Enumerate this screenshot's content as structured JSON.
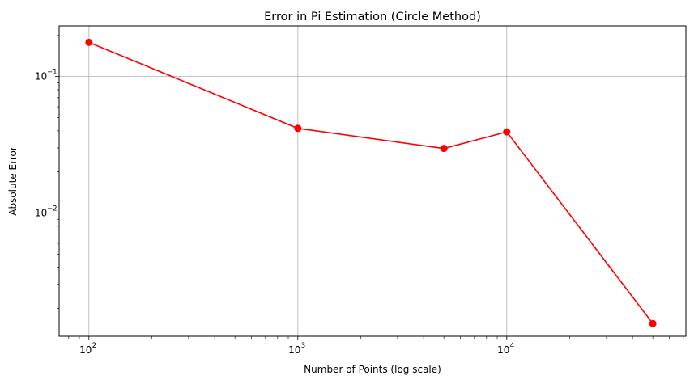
{
  "chart_data": {
    "type": "line",
    "title": "Error in Pi Estimation (Circle Method)",
    "xlabel": "Number of Points (log scale)",
    "ylabel": "Absolute Error",
    "xscale": "log",
    "yscale": "log",
    "xlim": [
      72,
      72000
    ],
    "ylim": [
      0.00125,
      0.235
    ],
    "grid": true,
    "x_ticks": [
      {
        "value": 100,
        "base": "10",
        "exp": "2"
      },
      {
        "value": 1000,
        "base": "10",
        "exp": "3"
      },
      {
        "value": 10000,
        "base": "10",
        "exp": "4"
      }
    ],
    "y_ticks": [
      {
        "value": 0.1,
        "base": "10",
        "exp": "−1"
      },
      {
        "value": 0.01,
        "base": "10",
        "exp": "−2"
      }
    ],
    "series": [
      {
        "color": "#ff0000",
        "marker": "circle",
        "x": [
          100,
          1000,
          5000,
          10000,
          50000
        ],
        "y": [
          0.178,
          0.0417,
          0.0297,
          0.0393,
          0.00155
        ]
      }
    ]
  }
}
